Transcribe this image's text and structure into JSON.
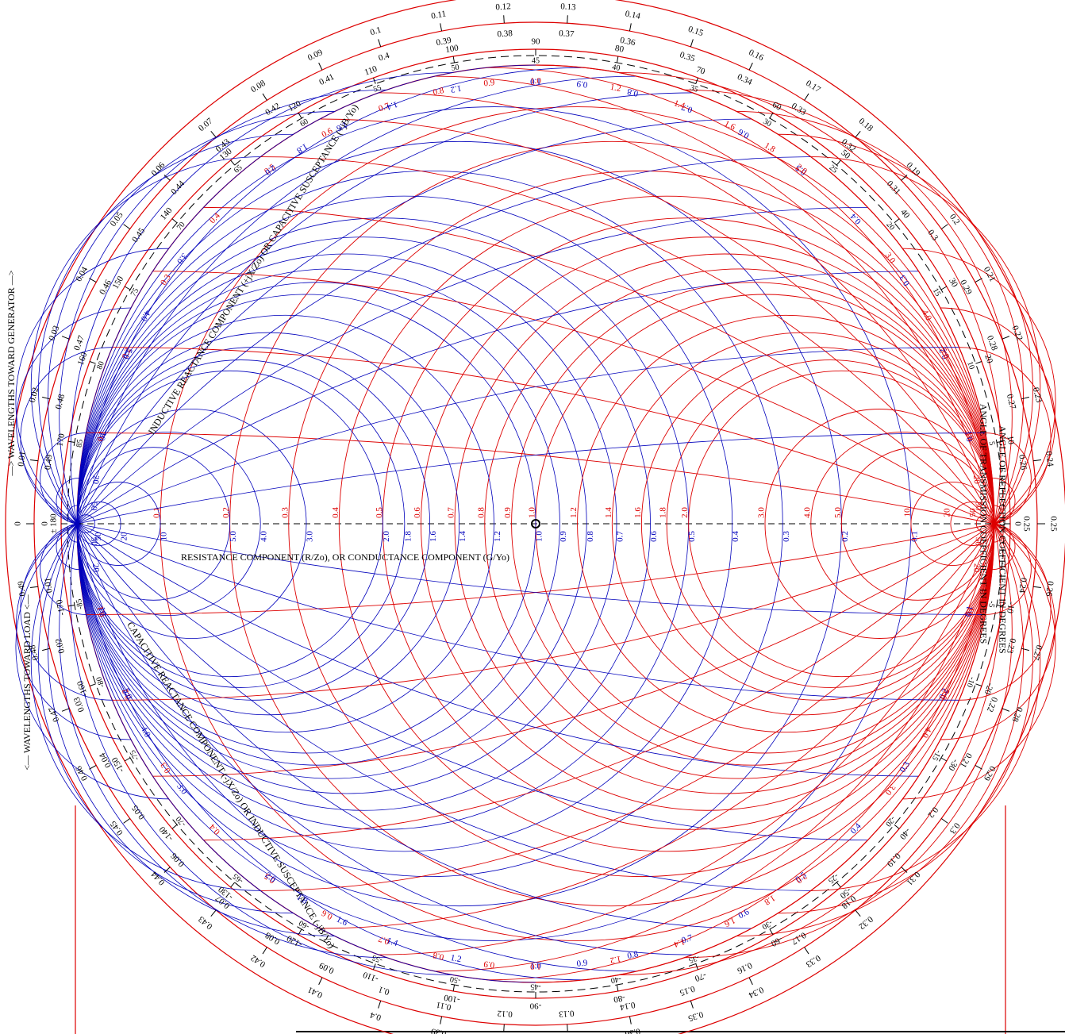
{
  "axis_labels": {
    "resistance": "RESISTANCE COMPONENT (R/Zo), OR CONDUCTANCE COMPONENT (G/Yo)",
    "inductive": "INDUCTIVE REACTANCE COMPONENT (+jX/Zo) OR CAPACITIVE SUSCEPTANCE (+jB/Yo)",
    "capacitive": "CAPACITIVE REACTANCE COMPONENT (-jX/Zo) OR INDUCTIVE SUSCEPTANCE (-jB/Yo)",
    "toward_generator": "—> WAVELENGTHS TOWARD GENERATOR —>",
    "toward_load": "<— WAVELENGTHS TOWARD LOAD <—",
    "reflection_angle": "ANGLE OF REFLECTION COEFFICIENT IN DEGREES",
    "transmission_angle": "ANGLE OF TRANSMISSION COEFFICIENT IN DEGREES"
  },
  "resistance_values": [
    0.1,
    0.2,
    0.3,
    0.4,
    0.5,
    0.6,
    0.7,
    0.8,
    0.9,
    {
      "value": 1,
      "label": "1.0"
    },
    1.2,
    1.4,
    1.6,
    1.8,
    {
      "value": 2,
      "label": "2.0"
    },
    {
      "value": 3,
      "label": "3.0"
    },
    {
      "value": 4,
      "label": "4.0"
    },
    {
      "value": 5,
      "label": "5.0"
    },
    10,
    20,
    50
  ],
  "reactance_values": [
    0.1,
    0.2,
    0.3,
    0.4,
    0.5,
    0.6,
    0.7,
    0.8,
    0.9,
    {
      "value": 1,
      "label": "1.0"
    },
    1.2,
    1.4,
    1.6,
    1.8,
    {
      "value": 2,
      "label": "2.0"
    },
    {
      "value": 3,
      "label": "3.0"
    },
    {
      "value": 4,
      "label": "4.0"
    },
    {
      "value": 5,
      "label": "5.0"
    },
    10,
    20,
    50
  ],
  "wavelengths": [
    0,
    0.01,
    0.02,
    0.03,
    0.04,
    0.05,
    0.06,
    0.07,
    0.08,
    0.09,
    0.1,
    0.11,
    0.12,
    0.13,
    0.14,
    0.15,
    0.16,
    0.17,
    0.18,
    0.19,
    0.2,
    0.21,
    0.22,
    0.23,
    0.24,
    0.25,
    0.26,
    0.27,
    0.28,
    0.29,
    0.3,
    0.31,
    0.32,
    0.33,
    0.34,
    0.35,
    0.36,
    0.37,
    0.38,
    0.39,
    0.4,
    0.41,
    0.42,
    0.43,
    0.44,
    0.45,
    0.46,
    0.47,
    0.48,
    0.49
  ],
  "reflection_angles": [
    {
      "value": 180,
      "label": "± 180"
    },
    170,
    160,
    150,
    140,
    130,
    120,
    110,
    100,
    90,
    80,
    70,
    60,
    50,
    40,
    30,
    20,
    10,
    0,
    -10,
    -20,
    -30,
    -40,
    -50,
    -60,
    -70,
    -80,
    -90,
    -100,
    -110,
    -120,
    -130,
    -140,
    -150,
    -160,
    -170
  ],
  "transmission_angles": [
    85,
    80,
    75,
    70,
    65,
    60,
    55,
    50,
    45,
    40,
    35,
    30,
    25,
    20,
    15,
    10,
    5,
    -5,
    -10,
    -15,
    -20,
    -25,
    -30,
    -35,
    -40,
    -45,
    -50,
    -55,
    -60,
    -65,
    -70,
    -75,
    -80,
    -85
  ]
}
